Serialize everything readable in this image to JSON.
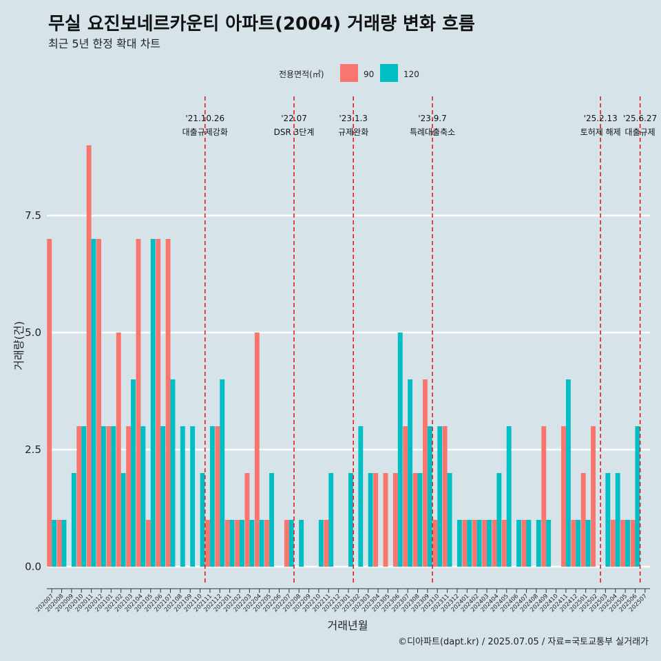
{
  "title": "무실 요진보네르카운티 아파트(2004) 거래량 변화 흐름",
  "subtitle": "최근 5년 한정 확대 차트",
  "caption": "©디아파트(dapt.kr) / 2025.07.05 / 자료=국토교통부 실거래가",
  "legend": {
    "title": "전용면적(㎡)",
    "items": [
      {
        "label": "90",
        "color": "#f8766d"
      },
      {
        "label": "120",
        "color": "#00bfc4"
      }
    ]
  },
  "colors": {
    "background": "#d6e4ea",
    "grid": "#ffffff",
    "event_line": "#e41a1c"
  },
  "chart_data": {
    "type": "bar",
    "title": "무실 요진보네르카운티 아파트(2004) 거래량 변화 흐름",
    "xlabel": "거래년월",
    "ylabel": "거래량(건)",
    "ylim": [
      -0.4,
      9.5
    ],
    "yticks": [
      0.0,
      2.5,
      5.0,
      7.5
    ],
    "ytick_labels": [
      "0.0",
      "2.5",
      "5.0",
      "7.5"
    ],
    "categories": [
      "202007",
      "202008",
      "202009",
      "202010",
      "202011",
      "202012",
      "202101",
      "202102",
      "202103",
      "202104",
      "202105",
      "202106",
      "202107",
      "202108",
      "202109",
      "202110",
      "202111",
      "202112",
      "202201",
      "202202",
      "202203",
      "202204",
      "202205",
      "202206",
      "202207",
      "202208",
      "202209",
      "202210",
      "202211",
      "202212",
      "202301",
      "202302",
      "202303",
      "202304",
      "202305",
      "202306",
      "202307",
      "202308",
      "202309",
      "202310",
      "202311",
      "202312",
      "202401",
      "202402",
      "202403",
      "202404",
      "202405",
      "202406",
      "202407",
      "202408",
      "202409",
      "202410",
      "202411",
      "202412",
      "202501",
      "202502",
      "202503",
      "202504",
      "202505",
      "202506",
      "202507"
    ],
    "series": [
      {
        "name": "90",
        "values": [
          7,
          1,
          0,
          3,
          9,
          7,
          3,
          5,
          3,
          7,
          1,
          7,
          7,
          0,
          0,
          0,
          1,
          3,
          1,
          1,
          2,
          5,
          1,
          0,
          1,
          0,
          0,
          0,
          1,
          0,
          0,
          0,
          0,
          2,
          2,
          2,
          3,
          2,
          4,
          1,
          3,
          0,
          1,
          1,
          1,
          1,
          1,
          0,
          1,
          0,
          3,
          0,
          3,
          1,
          2,
          3,
          0,
          1,
          1,
          1,
          0
        ]
      },
      {
        "name": "120",
        "values": [
          1,
          1,
          2,
          3,
          7,
          3,
          3,
          2,
          4,
          3,
          7,
          3,
          4,
          3,
          3,
          2,
          3,
          4,
          1,
          1,
          1,
          1,
          2,
          0,
          1,
          1,
          0,
          1,
          2,
          0,
          2,
          3,
          2,
          0,
          0,
          5,
          4,
          2,
          3,
          3,
          2,
          1,
          1,
          1,
          1,
          2,
          3,
          1,
          1,
          1,
          1,
          0,
          4,
          1,
          1,
          0,
          2,
          2,
          1,
          3,
          0
        ]
      }
    ],
    "events": [
      {
        "date": "'21.10.26",
        "label": "대출규제강화",
        "after_category": "202110"
      },
      {
        "date": "'22.07",
        "label": "DSR 3단계",
        "after_category": "202207"
      },
      {
        "date": "'23.1.3",
        "label": "규제완화",
        "after_category": "202301"
      },
      {
        "date": "'23.9.7",
        "label": "특례대출축소",
        "after_category": "202309"
      },
      {
        "date": "'25.2.13",
        "label": "토허제 해제",
        "after_category": "202502"
      },
      {
        "date": "'25.6.27",
        "label": "대출규제",
        "after_category": "202506"
      }
    ]
  }
}
